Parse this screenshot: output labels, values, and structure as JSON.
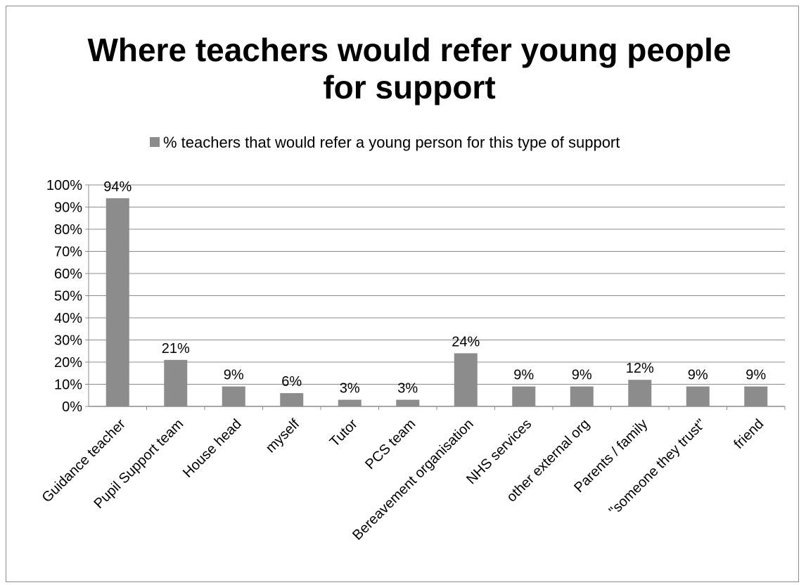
{
  "chart_data": {
    "type": "bar",
    "title_lines": [
      "Where teachers would refer young people",
      "for support"
    ],
    "legend_label": "% teachers that would refer a young person for this type of support",
    "categories": [
      "Guidance teacher",
      "Pupil Support team",
      "House head",
      "myself",
      "Tutor",
      "PCS team",
      "Bereavement organisation",
      "NHS services",
      "other external org",
      "Parents / family",
      "\"someone they trust\"",
      "friend"
    ],
    "values": [
      94,
      21,
      9,
      6,
      3,
      3,
      24,
      9,
      9,
      12,
      9,
      9
    ],
    "data_labels": [
      "94%",
      "21%",
      "9%",
      "6%",
      "3%",
      "3%",
      "24%",
      "9%",
      "9%",
      "12%",
      "9%",
      "9%"
    ],
    "y_ticks": [
      "0%",
      "10%",
      "20%",
      "30%",
      "40%",
      "50%",
      "60%",
      "70%",
      "80%",
      "90%",
      "100%"
    ],
    "ylim": [
      0,
      100
    ],
    "grid": true,
    "legend_position": "top",
    "colors": {
      "bar": "#8c8c8c",
      "grid": "#8c8c8c",
      "axis": "#8c8c8c"
    }
  }
}
